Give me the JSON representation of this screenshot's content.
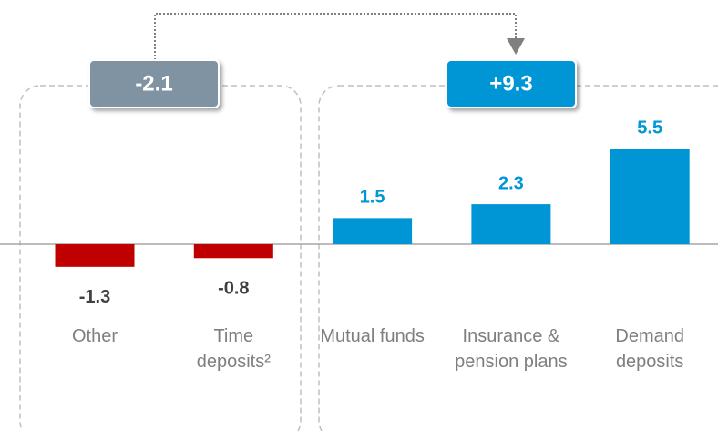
{
  "chart_data": {
    "type": "bar",
    "categories": [
      "Other",
      "Time deposits²",
      "Mutual funds",
      "Insurance & pension plans",
      "Demand deposits"
    ],
    "values": [
      -1.3,
      -0.8,
      1.5,
      2.3,
      5.5
    ],
    "positive_color": "#0096d6",
    "negative_color": "#c00000",
    "annotations": [
      "-2.1",
      "+9.3"
    ]
  }
}
